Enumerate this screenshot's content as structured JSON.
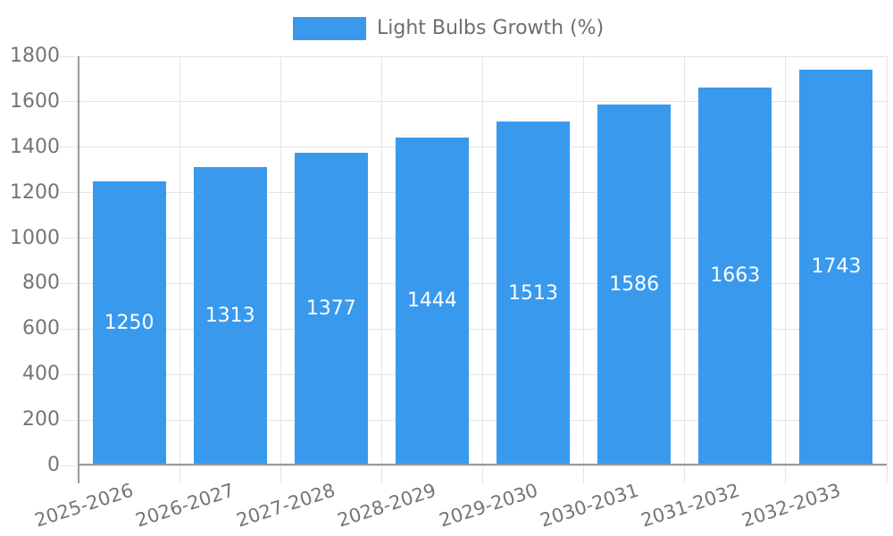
{
  "chart_data": {
    "type": "bar",
    "title": "",
    "legend_entries": [
      "Light Bulbs Growth (%)"
    ],
    "legend_position": "top",
    "categories": [
      "2025-2026",
      "2026-2027",
      "2027-2028",
      "2028-2029",
      "2029-2030",
      "2030-2031",
      "2031-2032",
      "2032-2033"
    ],
    "values": [
      1250,
      1313,
      1377,
      1444,
      1513,
      1586,
      1663,
      1743
    ],
    "xlabel": "",
    "ylabel": "",
    "ylim": [
      0,
      1800
    ],
    "y_ticks": [
      0,
      200,
      400,
      600,
      800,
      1000,
      1200,
      1400,
      1600,
      1800
    ],
    "grid": true,
    "x_label_rotation_deg": -18,
    "value_labels_inside_bars": true,
    "colors": {
      "bar": "#3999ED",
      "grid": "#E5E5E5",
      "axis": "#999999",
      "tick_text": "#757575",
      "legend_text": "#6E6E6E",
      "value_text": "#FFFFFF",
      "background": "#FFFFFF"
    }
  }
}
